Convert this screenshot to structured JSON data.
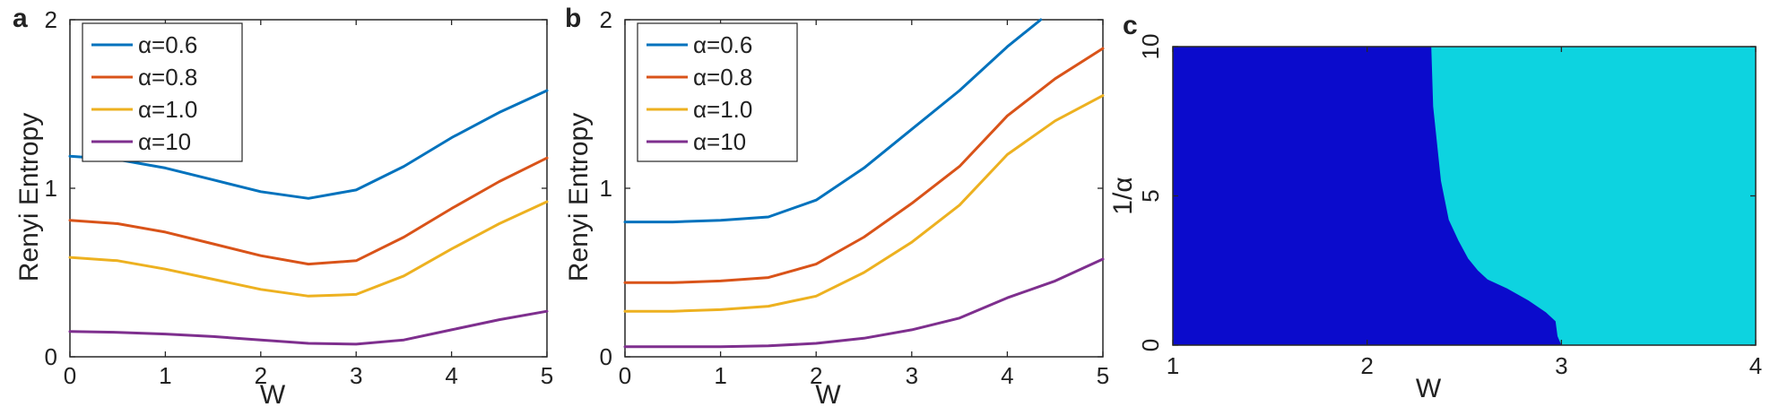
{
  "chart_data": [
    {
      "panel": "a",
      "type": "line",
      "xlabel": "W",
      "ylabel": "Renyi Entropy",
      "xlim": [
        0,
        5
      ],
      "ylim": [
        0,
        2
      ],
      "xticks": [
        "0",
        "1",
        "2",
        "3",
        "4",
        "5"
      ],
      "yticks": [
        "0",
        "1",
        "2"
      ],
      "legend": "top-left",
      "x": [
        0,
        0.5,
        1,
        1.5,
        2,
        2.5,
        3,
        3.5,
        4,
        4.5,
        5
      ],
      "series": [
        {
          "name": "α=0.6",
          "color": "#0072BD",
          "values": [
            1.19,
            1.17,
            1.12,
            1.05,
            0.98,
            0.94,
            0.99,
            1.13,
            1.3,
            1.45,
            1.58
          ]
        },
        {
          "name": "α=0.8",
          "color": "#D95319",
          "values": [
            0.81,
            0.79,
            0.74,
            0.67,
            0.6,
            0.55,
            0.57,
            0.71,
            0.88,
            1.04,
            1.18
          ]
        },
        {
          "name": "α=1.0",
          "color": "#EDB120",
          "values": [
            0.59,
            0.57,
            0.52,
            0.46,
            0.4,
            0.36,
            0.37,
            0.48,
            0.64,
            0.79,
            0.92
          ]
        },
        {
          "name": "α=10",
          "color": "#7E2F8E",
          "values": [
            0.15,
            0.145,
            0.135,
            0.12,
            0.1,
            0.08,
            0.075,
            0.1,
            0.16,
            0.22,
            0.27
          ]
        }
      ]
    },
    {
      "panel": "b",
      "type": "line",
      "xlabel": "W",
      "ylabel": "Renyi Entropy",
      "xlim": [
        0,
        5
      ],
      "ylim": [
        0,
        2
      ],
      "xticks": [
        "0",
        "1",
        "2",
        "3",
        "4",
        "5"
      ],
      "yticks": [
        "0",
        "1",
        "2"
      ],
      "legend": "top-left",
      "x": [
        0,
        0.5,
        1,
        1.5,
        2,
        2.5,
        3,
        3.5,
        4,
        4.35,
        4.5,
        5
      ],
      "series": [
        {
          "name": "α=0.6",
          "color": "#0072BD",
          "values": [
            0.8,
            0.8,
            0.81,
            0.83,
            0.93,
            1.12,
            1.35,
            1.58,
            1.84,
            2.0,
            null,
            null
          ]
        },
        {
          "name": "α=0.8",
          "color": "#D95319",
          "values": [
            0.44,
            0.44,
            0.45,
            0.47,
            0.55,
            0.71,
            0.91,
            1.13,
            1.43,
            null,
            1.65,
            1.83
          ]
        },
        {
          "name": "α=1.0",
          "color": "#EDB120",
          "values": [
            0.27,
            0.27,
            0.28,
            0.3,
            0.36,
            0.5,
            0.68,
            0.9,
            1.2,
            null,
            1.4,
            1.55
          ]
        },
        {
          "name": "α=10",
          "color": "#7E2F8E",
          "values": [
            0.06,
            0.06,
            0.06,
            0.065,
            0.08,
            0.11,
            0.16,
            0.23,
            0.35,
            null,
            0.45,
            0.58
          ]
        }
      ]
    },
    {
      "panel": "c",
      "type": "area",
      "xlabel": "W",
      "ylabel": "1/α",
      "xlim": [
        1,
        4
      ],
      "ylim": [
        0,
        10
      ],
      "xticks": [
        "1",
        "2",
        "3",
        "4"
      ],
      "yticks": [
        "0",
        "5",
        "10"
      ],
      "region_colors": {
        "left": "#0B0BCC",
        "right": "#0DD3E0"
      },
      "boundary": {
        "y": [
          10,
          8.0,
          5.5,
          4.2,
          3.5,
          2.9,
          2.5,
          2.2,
          1.9,
          1.5,
          1.1,
          0.8,
          0.3,
          0
        ],
        "x": [
          2.33,
          2.34,
          2.38,
          2.42,
          2.47,
          2.52,
          2.57,
          2.62,
          2.72,
          2.83,
          2.92,
          2.97,
          2.98,
          3.0
        ]
      }
    }
  ]
}
